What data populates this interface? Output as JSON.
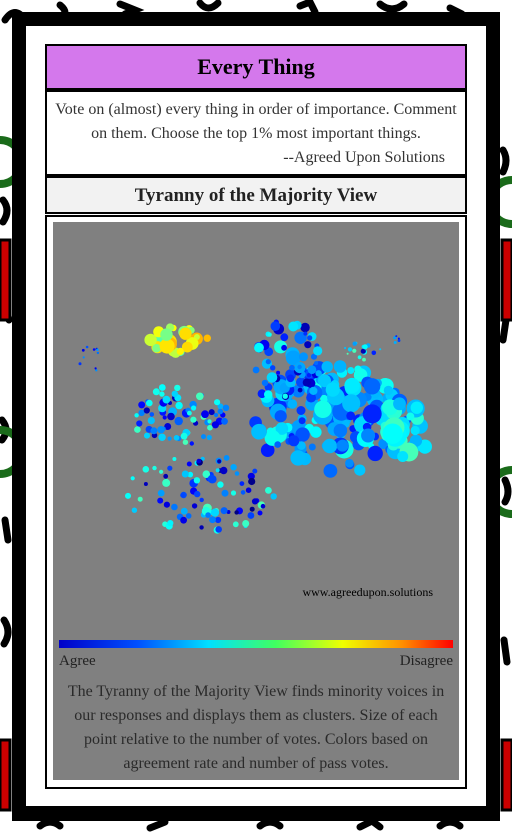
{
  "header": {
    "title": "Every Thing"
  },
  "intro": {
    "lines": [
      "Vote on (almost) every thing in order of importance. Comment",
      "on them. Choose the top 1% most important things.",
      "--Agreed Upon Solutions"
    ]
  },
  "view": {
    "title": "Tyranny of the Majority View",
    "watermark": "www.agreedupon.solutions",
    "legend": {
      "low": "Agree",
      "high": "Disagree"
    },
    "caption": [
      "The Tyranny of the Majority View finds minority voices in",
      "our responses and displays them as clusters. Size of each",
      "point relative to the number of votes. Colors based on",
      "agreement rate and number of pass votes."
    ]
  }
}
